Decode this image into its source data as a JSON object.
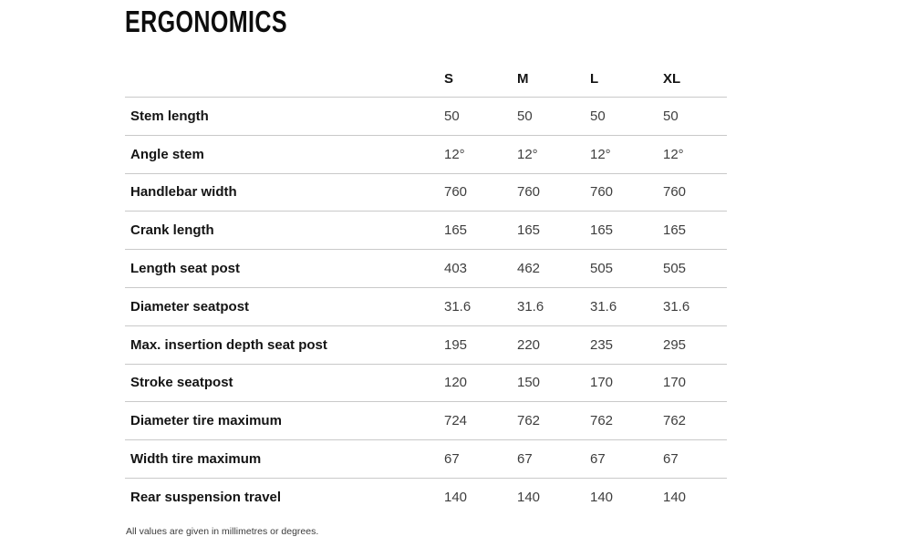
{
  "page": {
    "title": "ERGONOMICS",
    "footnote": "All values are given in millimetres or degrees."
  },
  "table": {
    "columns": [
      "S",
      "M",
      "L",
      "XL"
    ],
    "rows": [
      {
        "label": "Stem length",
        "values": [
          "50",
          "50",
          "50",
          "50"
        ]
      },
      {
        "label": "Angle stem",
        "values": [
          "12°",
          "12°",
          "12°",
          "12°"
        ]
      },
      {
        "label": "Handlebar width",
        "values": [
          "760",
          "760",
          "760",
          "760"
        ]
      },
      {
        "label": "Crank length",
        "values": [
          "165",
          "165",
          "165",
          "165"
        ]
      },
      {
        "label": "Length seat post",
        "values": [
          "403",
          "462",
          "505",
          "505"
        ]
      },
      {
        "label": "Diameter seatpost",
        "values": [
          "31.6",
          "31.6",
          "31.6",
          "31.6"
        ]
      },
      {
        "label": "Max. insertion depth seat post",
        "values": [
          "195",
          "220",
          "235",
          "295"
        ]
      },
      {
        "label": "Stroke seatpost",
        "values": [
          "120",
          "150",
          "170",
          "170"
        ]
      },
      {
        "label": "Diameter tire maximum",
        "values": [
          "724",
          "762",
          "762",
          "762"
        ]
      },
      {
        "label": "Width tire maximum",
        "values": [
          "67",
          "67",
          "67",
          "67"
        ]
      },
      {
        "label": "Rear suspension travel",
        "values": [
          "140",
          "140",
          "140",
          "140"
        ]
      }
    ]
  },
  "colors": {
    "title_text": "#0d0d0d",
    "label_text": "#141414",
    "value_text": "#3e3e3e",
    "divider": "#c9c9c9",
    "background": "#ffffff"
  }
}
